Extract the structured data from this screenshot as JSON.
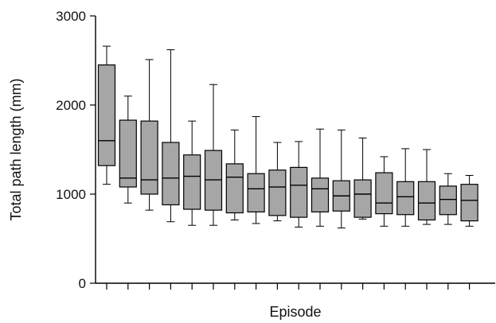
{
  "chart_data": {
    "type": "box",
    "xlabel": "Episode",
    "ylabel": "Total path length (mm)",
    "ylim": [
      0,
      3000
    ],
    "yticks": [
      0,
      1000,
      2000,
      3000
    ],
    "box_color": "#a6a6a6",
    "grid": false,
    "legend": "none",
    "boxes": [
      {
        "min": 1110,
        "q1": 1320,
        "median": 1600,
        "q3": 2450,
        "max": 2660
      },
      {
        "min": 900,
        "q1": 1080,
        "median": 1180,
        "q3": 1830,
        "max": 2100
      },
      {
        "min": 820,
        "q1": 1000,
        "median": 1160,
        "q3": 1820,
        "max": 2510
      },
      {
        "min": 690,
        "q1": 880,
        "median": 1180,
        "q3": 1580,
        "max": 2620
      },
      {
        "min": 650,
        "q1": 830,
        "median": 1200,
        "q3": 1440,
        "max": 1820
      },
      {
        "min": 650,
        "q1": 820,
        "median": 1160,
        "q3": 1490,
        "max": 2230
      },
      {
        "min": 710,
        "q1": 790,
        "median": 1190,
        "q3": 1340,
        "max": 1720
      },
      {
        "min": 670,
        "q1": 800,
        "median": 1060,
        "q3": 1230,
        "max": 1870
      },
      {
        "min": 700,
        "q1": 760,
        "median": 1080,
        "q3": 1270,
        "max": 1580
      },
      {
        "min": 630,
        "q1": 740,
        "median": 1100,
        "q3": 1300,
        "max": 1590
      },
      {
        "min": 640,
        "q1": 800,
        "median": 1060,
        "q3": 1180,
        "max": 1730
      },
      {
        "min": 620,
        "q1": 810,
        "median": 980,
        "q3": 1150,
        "max": 1720
      },
      {
        "min": 720,
        "q1": 740,
        "median": 1000,
        "q3": 1160,
        "max": 1630
      },
      {
        "min": 640,
        "q1": 780,
        "median": 900,
        "q3": 1240,
        "max": 1420
      },
      {
        "min": 640,
        "q1": 770,
        "median": 970,
        "q3": 1140,
        "max": 1510
      },
      {
        "min": 660,
        "q1": 710,
        "median": 900,
        "q3": 1140,
        "max": 1500
      },
      {
        "min": 660,
        "q1": 770,
        "median": 940,
        "q3": 1090,
        "max": 1230
      },
      {
        "min": 640,
        "q1": 700,
        "median": 930,
        "q3": 1110,
        "max": 1210
      }
    ]
  }
}
